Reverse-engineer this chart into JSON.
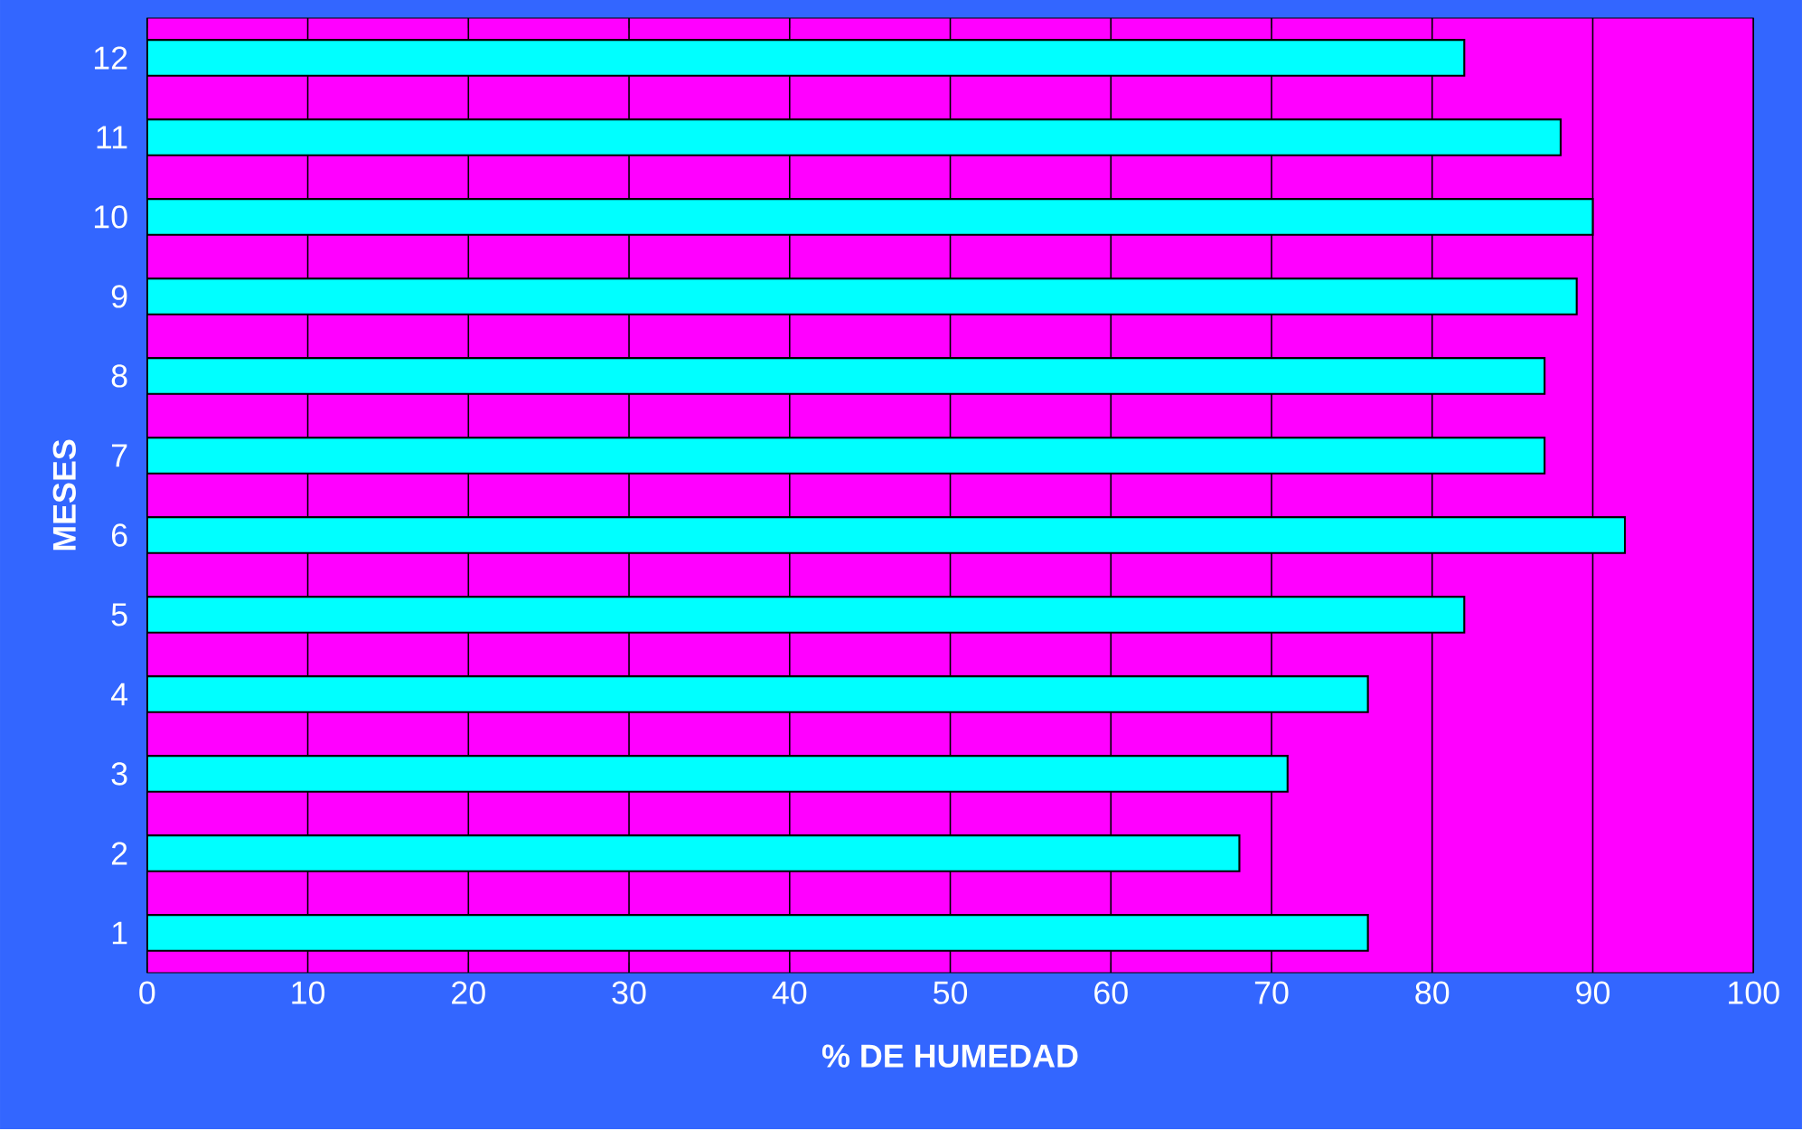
{
  "chart_data": {
    "type": "bar",
    "orientation": "horizontal",
    "xlabel": "% DE HUMEDAD",
    "ylabel": "MESES",
    "categories": [
      "12",
      "11",
      "10",
      "9",
      "8",
      "7",
      "6",
      "5",
      "4",
      "3",
      "2",
      "1"
    ],
    "values": [
      82,
      88,
      90,
      89,
      87,
      87,
      92,
      82,
      76,
      71,
      68,
      76
    ],
    "color": "#00ffff",
    "xlim": [
      0,
      100
    ],
    "xticks": [
      0,
      10,
      20,
      30,
      40,
      50,
      60,
      70,
      80,
      90,
      100
    ],
    "grid": "x"
  }
}
